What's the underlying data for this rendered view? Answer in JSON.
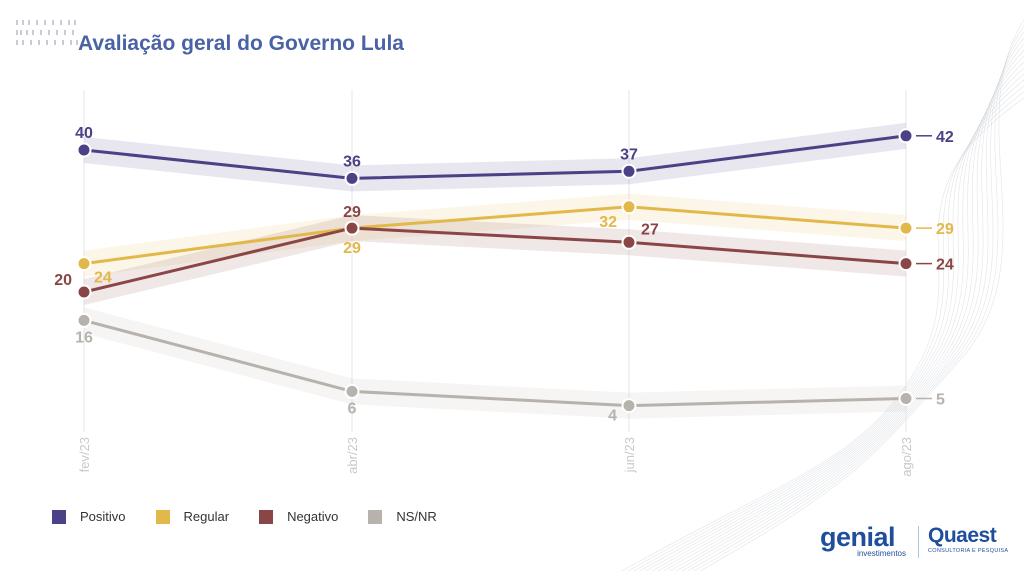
{
  "chart_data": {
    "type": "line",
    "title": "Avaliação geral do Governo Lula",
    "xlabel": "",
    "ylabel": "",
    "categories": [
      "fev/23",
      "abr/23",
      "jun/23",
      "ago/23"
    ],
    "ylim": [
      0,
      45
    ],
    "grid": "vertical",
    "legend_placement": "bottom-left",
    "series": [
      {
        "name": "Positivo",
        "values": [
          40,
          36,
          37,
          42
        ],
        "color": "#4a4187"
      },
      {
        "name": "Regular",
        "values": [
          24,
          29,
          32,
          29
        ],
        "color": "#e3b84a"
      },
      {
        "name": "Negativo",
        "values": [
          20,
          29,
          27,
          24
        ],
        "color": "#8a4646"
      },
      {
        "name": "NS/NR",
        "values": [
          16,
          6,
          4,
          5
        ],
        "color": "#b8b2ad"
      }
    ]
  },
  "brands": {
    "genial": "genial",
    "genial_sub": "investimentos",
    "quaest": "Quaest",
    "quaest_sub": "CONSULTORIA E PESQUISA"
  }
}
